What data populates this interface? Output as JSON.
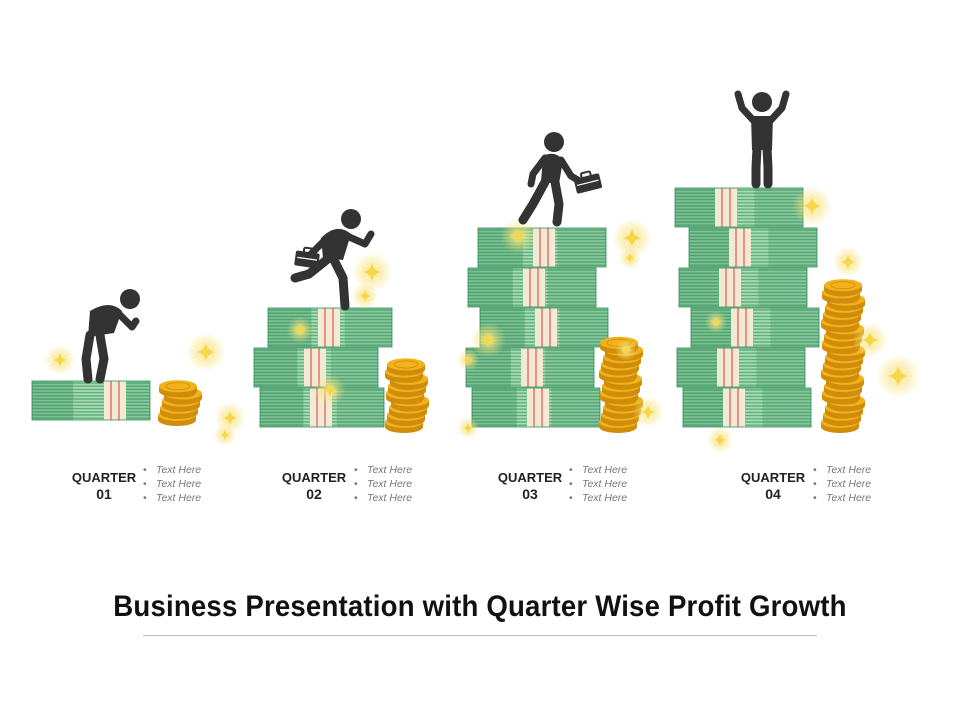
{
  "title": "Business Presentation with Quarter Wise Profit Growth",
  "colors": {
    "money_dark": "#2f8d57",
    "money_mid": "#5fb07c",
    "money_light": "#a9dbb4",
    "band": "#f3ead6",
    "band_stripe": "#e0594a",
    "coin": "#f2b21b",
    "coin_edge": "#d08c0b",
    "figure": "#333333",
    "sparkle": "#f7d64a"
  },
  "quarters": [
    {
      "label": "QUARTER",
      "number": "01",
      "bullets": [
        "Text Here",
        "Text Here",
        "Text Here"
      ],
      "money_rows": 1,
      "coin_count": 5,
      "figure_icon": "tired-person-icon"
    },
    {
      "label": "QUARTER",
      "number": "02",
      "bullets": [
        "Text Here",
        "Text Here",
        "Text Here"
      ],
      "money_rows": 3,
      "coin_count": 9,
      "figure_icon": "running-person-briefcase-icon"
    },
    {
      "label": "QUARTER",
      "number": "03",
      "bullets": [
        "Text Here",
        "Text Here",
        "Text Here"
      ],
      "money_rows": 5,
      "coin_count": 12,
      "figure_icon": "walking-person-briefcase-icon"
    },
    {
      "label": "QUARTER",
      "number": "04",
      "bullets": [
        "Text Here",
        "Text Here",
        "Text Here"
      ],
      "money_rows": 6,
      "coin_count": 20,
      "figure_icon": "celebrating-person-icon"
    }
  ]
}
